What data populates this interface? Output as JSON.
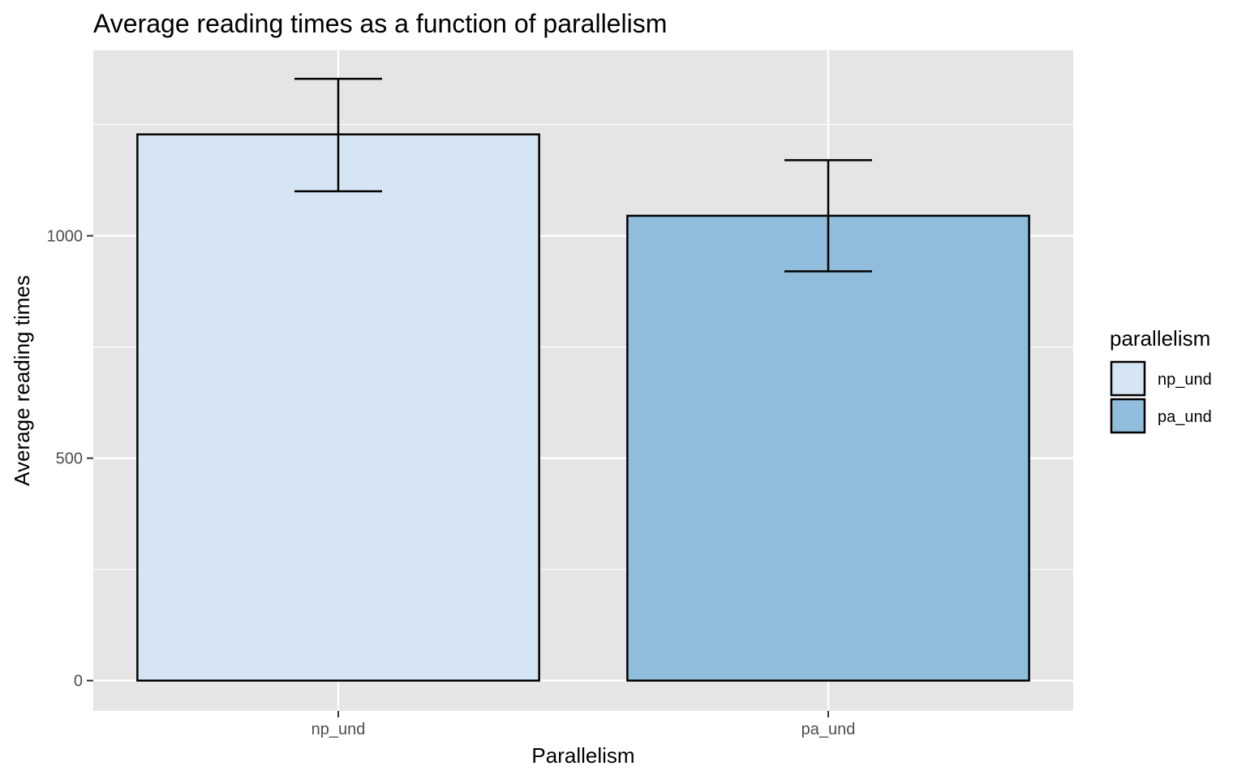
{
  "chart_data": {
    "type": "bar",
    "title": "Average reading times as a function of parallelism",
    "xlabel": "Parallelism",
    "ylabel": "Average reading times",
    "categories": [
      "np_und",
      "pa_und"
    ],
    "values": [
      1228,
      1045
    ],
    "error_bars": [
      {
        "category": "np_und",
        "low": 1100,
        "high": 1353
      },
      {
        "category": "pa_und",
        "low": 920,
        "high": 1170
      }
    ],
    "ylim": [
      -68,
      1417
    ],
    "yticks": [
      0,
      500,
      1000
    ],
    "ytick_labels": [
      "0",
      "500",
      "1000"
    ],
    "grid": true,
    "legend": {
      "title": "parallelism",
      "position": "right",
      "entries": [
        "np_und",
        "pa_und"
      ]
    },
    "colors": {
      "np_und": "#d6e5f3",
      "pa_und": "#90bddb",
      "panel": "#e5e5e5",
      "grid": "#ffffff",
      "outline": "#000000"
    }
  }
}
